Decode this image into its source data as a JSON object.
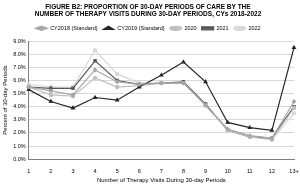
{
  "chart_data": {
    "type": "line",
    "title": "FIGURE B2: PROPORTION OF 30-DAY PERIODS OF CARE BY THE NUMBER OF THERAPY VISITS DURING 30-DAY PERIODS, CYs 2018-2022",
    "x_label": "Number of Therapy Visits During 30-day Periods",
    "y_label": "Percent of 30-day Periods",
    "categories": [
      "1",
      "2",
      "3",
      "4",
      "5",
      "6",
      "7",
      "8",
      "9",
      "10",
      "11",
      "12",
      "13+"
    ],
    "series": [
      {
        "name": "CY2018 (Standard)",
        "color": "#a6a6a6",
        "marker": "diamond",
        "values": [
          5.5,
          5.2,
          4.9,
          6.8,
          5.9,
          5.7,
          5.8,
          5.8,
          4.1,
          2.3,
          1.8,
          1.6,
          4.4
        ]
      },
      {
        "name": "CY2019 (Standard)",
        "color": "#262626",
        "marker": "triangle",
        "values": [
          5.3,
          4.4,
          3.9,
          4.7,
          4.5,
          5.5,
          6.4,
          7.4,
          5.9,
          2.8,
          2.4,
          2.2,
          8.5
        ]
      },
      {
        "name": "2020",
        "color": "#bfbfbf",
        "marker": "circle",
        "values": [
          5.5,
          4.9,
          4.8,
          6.2,
          5.5,
          5.6,
          5.8,
          5.8,
          4.1,
          2.2,
          1.7,
          1.5,
          3.9
        ]
      },
      {
        "name": "2021",
        "color": "#595959",
        "marker": "square",
        "values": [
          5.5,
          5.4,
          5.4,
          7.5,
          6.0,
          5.7,
          5.8,
          5.9,
          4.2,
          2.2,
          1.7,
          1.6,
          4.0
        ]
      },
      {
        "name": "2022",
        "color": "#d9d9d9",
        "marker": "circle",
        "values": [
          5.7,
          5.5,
          5.5,
          8.3,
          6.5,
          5.8,
          5.8,
          5.8,
          4.2,
          2.2,
          1.7,
          1.5,
          3.5
        ]
      }
    ],
    "ylim": [
      0,
      9
    ],
    "yticks": [
      {
        "value": 0,
        "label": "0.0%"
      },
      {
        "value": 1,
        "label": "1.0%"
      },
      {
        "value": 2,
        "label": "2.0%"
      },
      {
        "value": 3,
        "label": "3.0%"
      },
      {
        "value": 4,
        "label": "4.0%"
      },
      {
        "value": 5,
        "label": "5.0%"
      },
      {
        "value": 6,
        "label": "6.0%"
      },
      {
        "value": 7,
        "label": "7.0%"
      },
      {
        "value": 8,
        "label": "8.0%"
      },
      {
        "value": 9,
        "label": "9.0%"
      }
    ],
    "grid": true,
    "legend": "top"
  }
}
